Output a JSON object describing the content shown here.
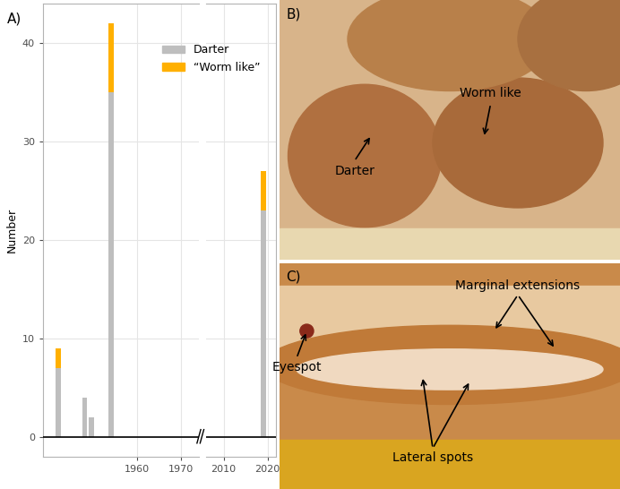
{
  "chart_data": {
    "type": "bar",
    "stacked": true,
    "title": "A)",
    "ylabel": "Number",
    "x": [
      1942,
      1948,
      1949.5,
      1954,
      2019
    ],
    "series": [
      {
        "name": "Darter",
        "color": "#bebebe",
        "values": [
          7,
          4,
          2,
          35,
          23
        ]
      },
      {
        "name": "“Worm like”",
        "color": "#ffb000",
        "values": [
          2,
          0,
          0,
          7,
          4
        ]
      }
    ],
    "xlim": [
      [
        1938.5,
        1974
      ],
      [
        2006,
        2022
      ]
    ],
    "xticks": [
      1960,
      1970,
      2010,
      2020
    ],
    "ylim": [
      -2,
      44
    ],
    "yticks": [
      0,
      10,
      20,
      30,
      40
    ],
    "grid": true,
    "legend": "upper right"
  },
  "photos": [
    {
      "label": "B)",
      "annotations": [
        "Darter",
        "Worm like"
      ]
    },
    {
      "label": "C)",
      "annotations": [
        "Marginal extensions",
        "Eyespot",
        "Lateral spots"
      ]
    }
  ]
}
